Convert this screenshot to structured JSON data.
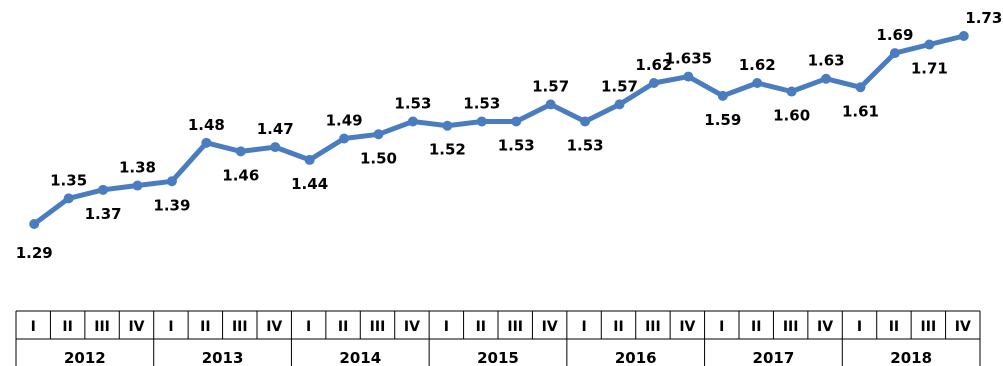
{
  "chart_data": {
    "type": "line",
    "title": "",
    "xlabel": "",
    "ylabel": "",
    "grid": false,
    "legend": "none",
    "line_color": "#4a7dbf",
    "years": [
      "2012",
      "2013",
      "2014",
      "2015",
      "2016",
      "2017",
      "2018"
    ],
    "quarters": [
      "I",
      "II",
      "III",
      "IV"
    ],
    "categories": [
      "2012 I",
      "2012 II",
      "2012 III",
      "2012 IV",
      "2013 I",
      "2013 II",
      "2013 III",
      "2013 IV",
      "2014 I",
      "2014 II",
      "2014 III",
      "2014 IV",
      "2015 I",
      "2015 II",
      "2015 III",
      "2015 IV",
      "2016 I",
      "2016 II",
      "2016 III",
      "2016 IV",
      "2017 I",
      "2017 II",
      "2017 III",
      "2017 IV",
      "2018 I",
      "2018 II",
      "2018 III",
      "2018 IV"
    ],
    "values": [
      1.29,
      1.35,
      1.37,
      1.38,
      1.39,
      1.48,
      1.46,
      1.47,
      1.44,
      1.49,
      1.5,
      1.53,
      1.52,
      1.53,
      1.53,
      1.57,
      1.53,
      1.57,
      1.62,
      1.635,
      1.59,
      1.62,
      1.6,
      1.63,
      1.61,
      1.69,
      1.71,
      1.73
    ],
    "labels": [
      "1.29",
      "1.35",
      "1.37",
      "1.38",
      "1.39",
      "1.48",
      "1.46",
      "1.47",
      "1.44",
      "1.49",
      "1.50",
      "1.53",
      "1.52",
      "1.53",
      "1.53",
      "1.57",
      "1.53",
      "1.57",
      "1.62",
      "1.635",
      "1.59",
      "1.62",
      "1.60",
      "1.63",
      "1.61",
      "1.69",
      "1.71",
      "1.73"
    ],
    "label_side": [
      "below",
      "above",
      "below",
      "above",
      "below",
      "above",
      "below",
      "above",
      "below",
      "above",
      "below",
      "above",
      "below",
      "above",
      "below",
      "above",
      "below",
      "above",
      "above",
      "above",
      "below",
      "above",
      "below",
      "above",
      "below",
      "above",
      "below",
      "above"
    ]
  }
}
